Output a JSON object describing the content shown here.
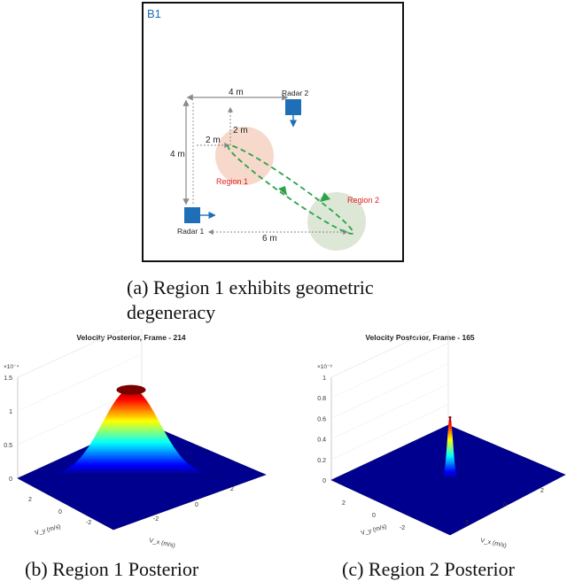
{
  "panel_a": {
    "panel_label": "B1",
    "radar1_label": "Radar 1",
    "radar2_label": "Radar 2",
    "dim_4m_top": "4 m",
    "dim_4m_left": "4 m",
    "dim_2m_vert": "2 m",
    "dim_2m_horiz": "2 m",
    "dim_6m": "6 m",
    "region1_label": "Region 1",
    "region2_label": "Region 2",
    "colors": {
      "radar": "#1e6fb8",
      "region1": "#f6d9cb",
      "region2": "#dde7d6",
      "path": "#2aa34a",
      "region_text": "#e02020"
    }
  },
  "captions": {
    "a": "(a) Region 1 exhibits geometric degeneracy",
    "b": "(b) Region 1 Posterior",
    "c": "(c) Region 2 Posterior"
  },
  "chart_data": [
    {
      "type": "surface",
      "title": "Velocity Posterior, Frame - 214",
      "xlabel": "V_x (m/s)",
      "ylabel": "V_y (m/s)",
      "z_exponent": "×10⁻⁴",
      "z_ticks": [
        "0",
        "0.5",
        "1",
        "1.5"
      ],
      "x_ticks": [
        "-2",
        "0",
        "2"
      ],
      "y_ticks": [
        "2",
        "0",
        "-2"
      ],
      "peak_value": 1.3,
      "peak_width": "wide"
    },
    {
      "type": "surface",
      "title": "Velocity Posterior, Frame - 165",
      "xlabel": "V_x (m/s)",
      "ylabel": "V_y (m/s)",
      "z_exponent": "×10⁻³",
      "z_ticks": [
        "0",
        "0.2",
        "0.4",
        "0.6",
        "0.8",
        "1"
      ],
      "x_ticks": [
        "-2",
        "0",
        "2"
      ],
      "y_ticks": [
        "2",
        "0",
        "-2"
      ],
      "peak_value": 0.62,
      "peak_width": "narrow"
    }
  ]
}
